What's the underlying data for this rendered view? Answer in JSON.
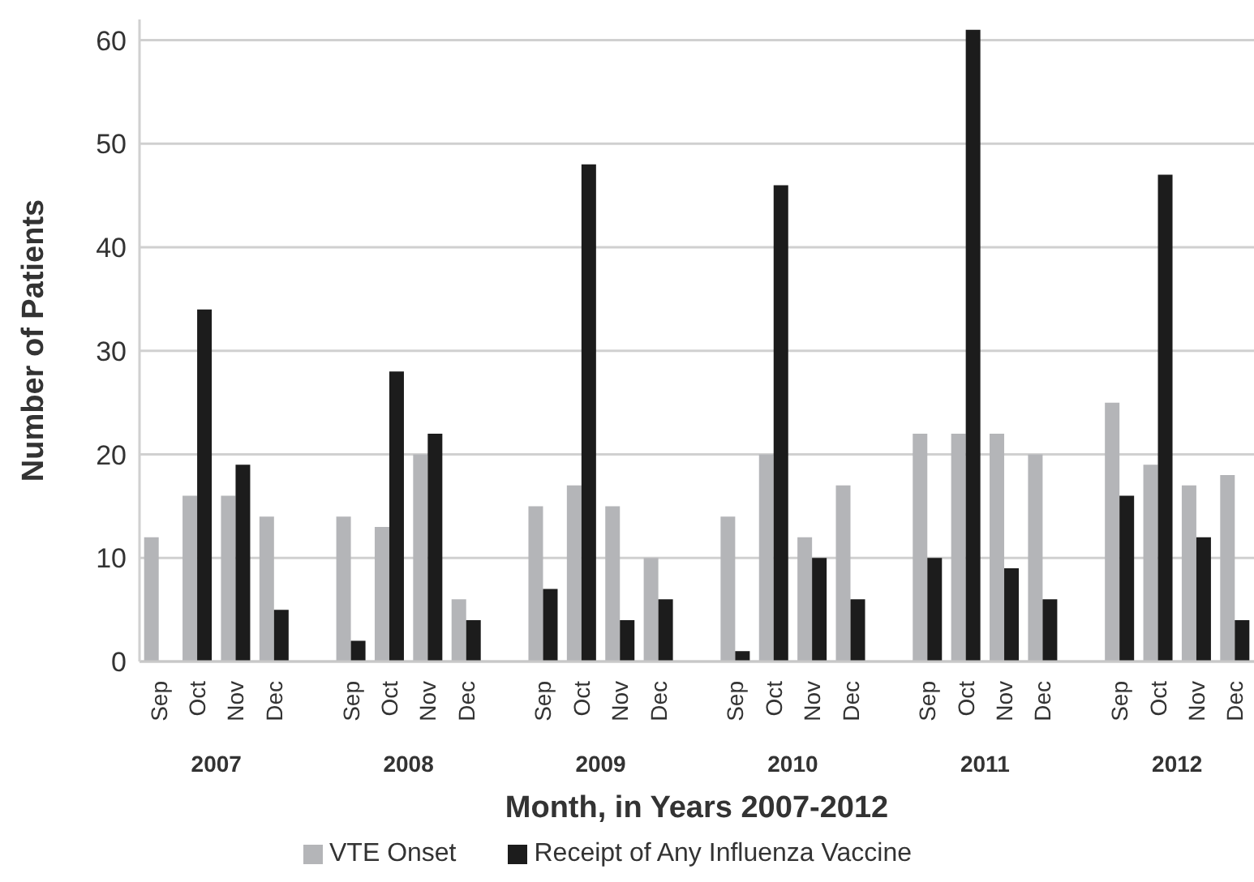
{
  "chart_data": {
    "type": "bar",
    "xlabel": "Month, in Years 2007-2012",
    "ylabel": "Number of Patients",
    "categories": [
      "Sep",
      "Oct",
      "Nov",
      "Dec",
      null,
      "Sep",
      "Oct",
      "Nov",
      "Dec",
      null,
      "Sep",
      "Oct",
      "Nov",
      "Dec",
      null,
      "Sep",
      "Oct",
      "Nov",
      "Dec",
      null,
      "Sep",
      "Oct",
      "Nov",
      "Dec",
      null,
      "Sep",
      "Oct",
      "Nov",
      "Dec"
    ],
    "series": [
      {
        "name": "VTE Onset",
        "color": "#b4b5b8",
        "values": [
          12,
          16,
          16,
          14,
          null,
          14,
          13,
          20,
          6,
          null,
          15,
          17,
          15,
          10,
          null,
          14,
          20,
          12,
          17,
          null,
          22,
          22,
          22,
          20,
          null,
          25,
          19,
          17,
          18
        ]
      },
      {
        "name": "Receipt of Any Influenza Vaccine",
        "color": "#1c1c1c",
        "values": [
          0,
          34,
          19,
          5,
          null,
          2,
          28,
          22,
          4,
          null,
          7,
          48,
          4,
          6,
          null,
          1,
          46,
          10,
          6,
          null,
          10,
          61,
          9,
          6,
          null,
          16,
          47,
          12,
          4
        ]
      }
    ],
    "annotations": [
      "2007",
      "2008",
      "2009",
      "2010",
      "2011",
      "2012"
    ],
    "ylim": [
      0,
      62
    ],
    "yticks": [
      0,
      10,
      20,
      30,
      40,
      50,
      60
    ],
    "grid": "y",
    "legend": "bottom"
  }
}
